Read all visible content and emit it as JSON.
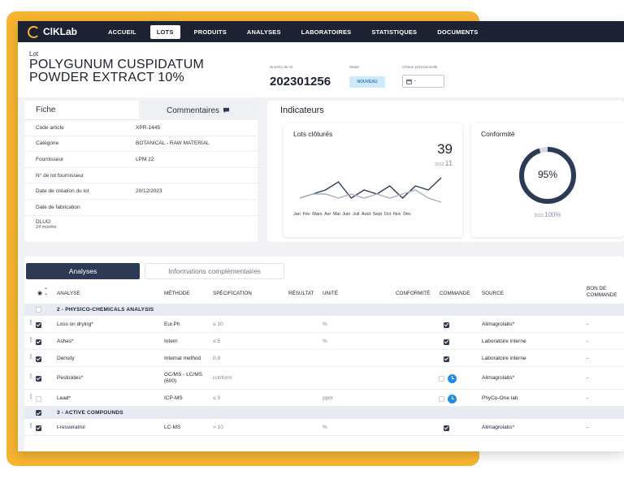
{
  "app": {
    "brand": "ClKLab"
  },
  "nav": [
    "ACCUEIL",
    "LOTS",
    "PRODUITS",
    "ANALYSES",
    "LABORATOIRES",
    "STATISTIQUES",
    "DOCUMENTS"
  ],
  "nav_active": "LOTS",
  "header": {
    "lot_label": "Lot",
    "title": "POLYGUNUM CUSPIDATUM POWDER EXTRACT 10%",
    "lot_number_label": "Numéro de lot",
    "lot_number": "202301256",
    "status_label": "Statut",
    "status": "NOUVEAU",
    "cloture_label": "Clôture prévisionnelle",
    "cloture_value": "-"
  },
  "fiche": {
    "tab_fiche": "Fiche",
    "tab_comments": "Commentaires",
    "rows": [
      {
        "k": "Code article",
        "v": "XPR-1445"
      },
      {
        "k": "Catégorie",
        "v": "BOTANICAL - RAW MATERIAL"
      },
      {
        "k": "Fournisseur",
        "v": "LPM 22"
      },
      {
        "k": "N° de lot fournisseur",
        "v": ""
      },
      {
        "k": "Date de création du lot",
        "v": "20/12/2023"
      },
      {
        "k": "Date de fabrication",
        "v": ""
      }
    ],
    "dluo_label": "DLUO",
    "dluo_value": "24 months"
  },
  "indicators": {
    "title": "Indicateurs",
    "lots_clotures": {
      "title": "Lots clôturés",
      "value": "39",
      "prev_year": "2022",
      "prev_value": "11"
    },
    "conformite": {
      "title": "Conformité",
      "value": "95%",
      "percent": 95,
      "prev_year": "2022",
      "prev_value": "100%"
    }
  },
  "chart_data": {
    "type": "line",
    "title": "Lots clôturés",
    "categories": [
      "Jan",
      "Fév",
      "Mars",
      "Avr",
      "Mai",
      "Juin",
      "Juil",
      "Août",
      "Sept",
      "Oct",
      "Nov",
      "Déc"
    ],
    "series": [
      {
        "name": "",
        "values": [
          2,
          3,
          4,
          6,
          2,
          4,
          3,
          5,
          2,
          5,
          4,
          7
        ],
        "color": "#2c3a55"
      },
      {
        "name": "",
        "values": [
          2,
          3,
          3,
          2,
          3,
          2,
          3,
          2,
          3,
          4,
          2,
          1
        ],
        "color": "#a8b0c0"
      }
    ]
  },
  "analyses": {
    "tab_active": "Analyses",
    "tab_other": "Informations complémentaires",
    "columns": [
      "ANALYSE",
      "MÉTHODE",
      "SPÉCIFICATION",
      "RÉSULTAT",
      "UNITÉ",
      "CONFORMITÉ",
      "COMMANDE",
      "SOURCE",
      "BON DE COMMANDE"
    ],
    "sections": [
      {
        "title": "2 - PHYSICO-CHEMICALS ANALYSIS",
        "rows": [
          {
            "name": "Loss on drying*",
            "method": "Eur.Ph",
            "spec": "≤ 10",
            "unit": "%",
            "commande": "checked",
            "source": "Alimagrolabs*",
            "bon": "-"
          },
          {
            "name": "Ashes*",
            "method": "Intern",
            "spec": "≤ 5",
            "unit": "%",
            "commande": "checked",
            "source": "Laboratoire interne",
            "bon": "-"
          },
          {
            "name": "Density",
            "method": "Internal method",
            "spec": "0.9",
            "unit": "",
            "commande": "checked",
            "source": "Laboratoire interne",
            "bon": "-"
          },
          {
            "name": "Pesticides*",
            "method": "GC/MS - LC/MS (600)",
            "spec": "conform",
            "unit": "",
            "commande": "pending",
            "source": "Alimagrolabs*",
            "bon": "-"
          },
          {
            "name": "Lead*",
            "method": "ICP-MS",
            "spec": "≤ 3",
            "unit": "ppm",
            "commande": "pending",
            "source": "PhyCo-One lab",
            "bon": "-"
          }
        ]
      },
      {
        "title": "3 - ACTIVE COMPOUNDS",
        "rows": [
          {
            "name": "t-resveratrol",
            "method": "LC-MS",
            "spec": "> 10",
            "unit": "%",
            "commande": "checked",
            "source": "Alimagrolabs*",
            "bon": "-"
          }
        ]
      }
    ]
  }
}
